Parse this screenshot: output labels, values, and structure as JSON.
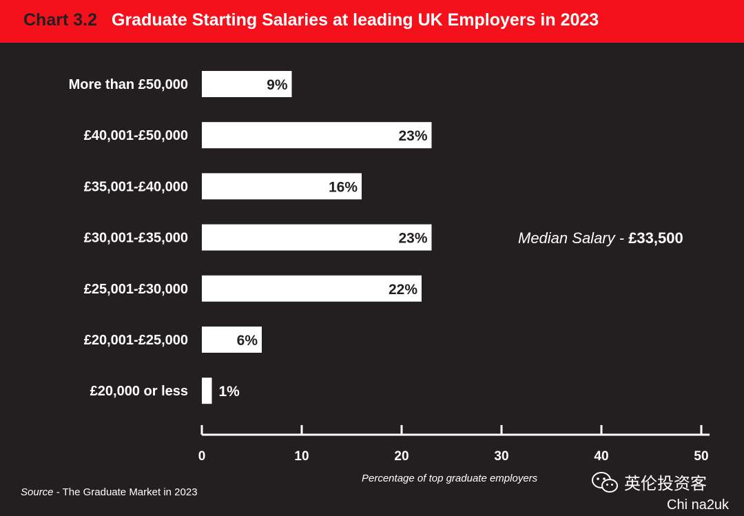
{
  "header": {
    "chart_number": "Chart 3.2",
    "title": "Graduate Starting Salaries at leading UK Employers in 2023"
  },
  "chart_data": {
    "type": "bar",
    "orientation": "horizontal",
    "categories": [
      "More than £50,000",
      "£40,001-£50,000",
      "£35,001-£40,000",
      "£30,001-£35,000",
      "£25,001-£30,000",
      "£20,001-£25,000",
      "£20,000 or less"
    ],
    "values": [
      9,
      23,
      16,
      23,
      22,
      6,
      1
    ],
    "value_labels": [
      "9%",
      "23%",
      "16%",
      "23%",
      "22%",
      "6%",
      "1%"
    ],
    "title": "Graduate Starting Salaries at leading UK Employers in 2023",
    "xlabel": "Percentage of top graduate employers",
    "ylabel": "",
    "xlim": [
      0,
      50
    ],
    "xticks": [
      0,
      10,
      20,
      30,
      40,
      50
    ],
    "grid": false,
    "legend": "none",
    "annotation": {
      "label": "Median Salary - ",
      "value": "£33,500"
    }
  },
  "source": {
    "label": "Source",
    "text": " - The Graduate Market in 2023"
  },
  "watermark": {
    "text": "英伦投资客",
    "sub": "Chi na2uk",
    "icon": "wechat-icon"
  },
  "colors": {
    "background": "#231f20",
    "header": "#f4111b",
    "bar": "#ffffff",
    "text": "#ffffff"
  }
}
